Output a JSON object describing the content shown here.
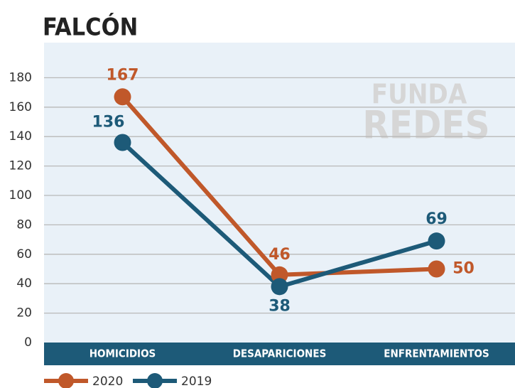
{
  "chart_data": {
    "type": "line",
    "title": "FALCÓN",
    "watermark": [
      "FUNDA",
      "REDES"
    ],
    "categories": [
      "HOMICIDIOS",
      "DESAPARICIONES",
      "ENFRENTAMIENTOS"
    ],
    "series": [
      {
        "name": "2020",
        "color": "#c0582a",
        "values": [
          167,
          46,
          50
        ]
      },
      {
        "name": "2019",
        "color": "#1d5a78",
        "values": [
          136,
          38,
          69
        ]
      }
    ],
    "ylim": [
      0,
      200
    ],
    "yticks": [
      0,
      20,
      40,
      60,
      80,
      100,
      120,
      140,
      160,
      180
    ],
    "grid": true
  }
}
